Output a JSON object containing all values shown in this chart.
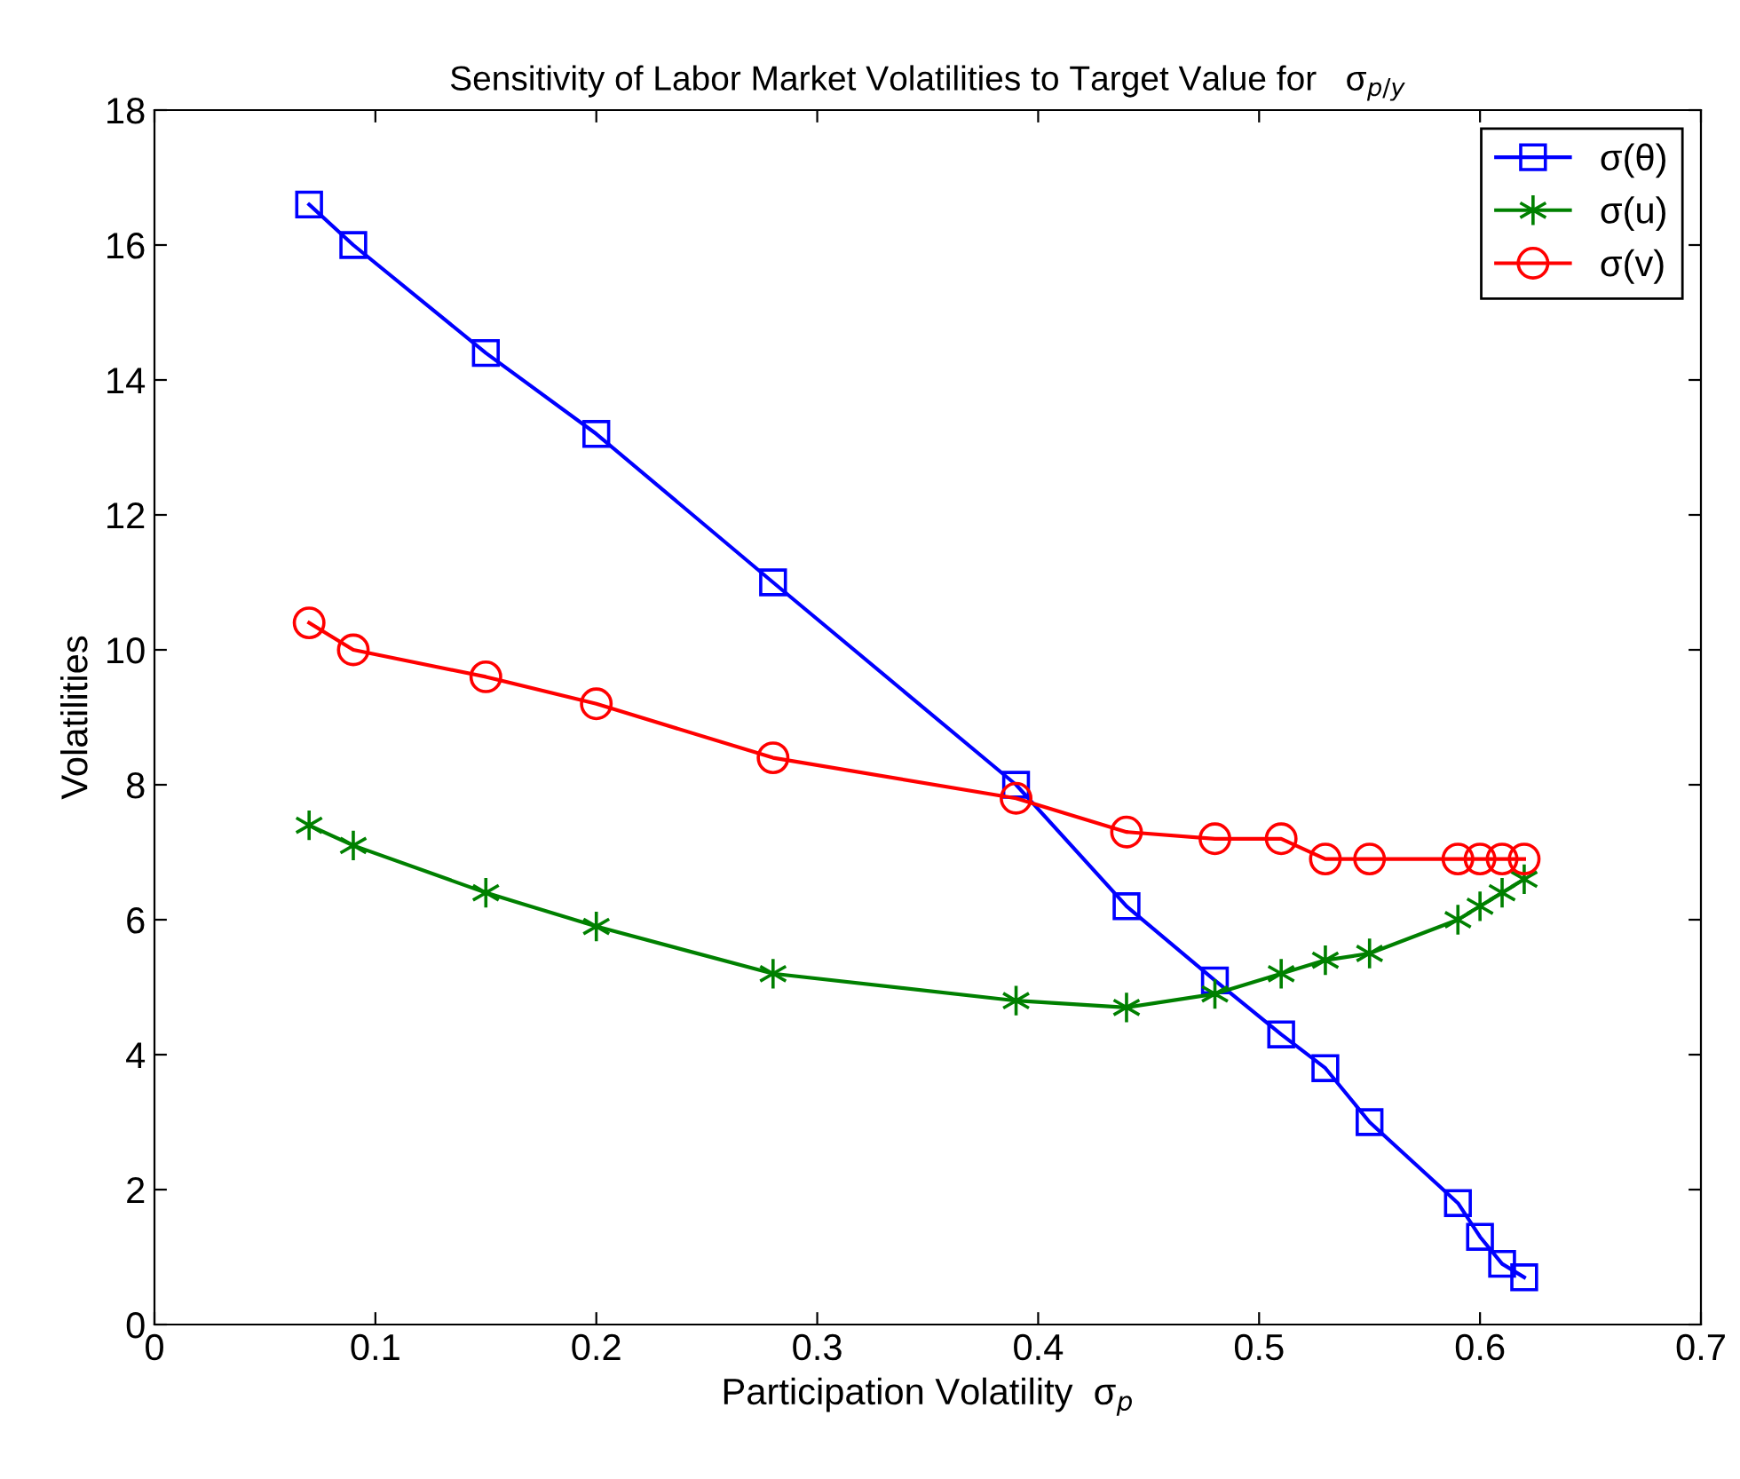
{
  "chart_data": {
    "type": "line",
    "title": "Sensitivity of Labor Market Volatilities to Target Value for   σ$_{p/y}$",
    "xlabel": "Participation Volatility  σ$_{p}$",
    "ylabel": "Volatilities",
    "x": [
      0.07,
      0.09,
      0.15,
      0.2,
      0.28,
      0.39,
      0.44,
      0.48,
      0.51,
      0.53,
      0.55,
      0.59,
      0.6,
      0.61,
      0.62
    ],
    "series": [
      {
        "name": "σ(θ)",
        "color": "#0000ff",
        "marker": "square",
        "values": [
          16.6,
          16.0,
          14.4,
          13.2,
          11.0,
          8.0,
          6.2,
          5.1,
          4.3,
          3.8,
          3.0,
          1.8,
          1.3,
          0.9,
          0.7
        ]
      },
      {
        "name": "σ(u)",
        "color": "#008000",
        "marker": "cross",
        "values": [
          7.4,
          7.1,
          6.4,
          5.9,
          5.2,
          4.8,
          4.7,
          4.9,
          5.2,
          5.4,
          5.5,
          6.0,
          6.2,
          6.4,
          6.6
        ]
      },
      {
        "name": "σ(v)",
        "color": "#ff0000",
        "marker": "circle",
        "values": [
          10.4,
          10.0,
          9.6,
          9.2,
          8.4,
          7.8,
          7.3,
          7.2,
          7.2,
          6.9,
          6.9,
          6.9,
          6.9,
          6.9,
          6.9
        ]
      }
    ],
    "xlim": [
      0,
      0.7
    ],
    "xticks": [
      0,
      0.1,
      0.2,
      0.3,
      0.4,
      0.5,
      0.6,
      0.7
    ],
    "ylim": [
      0,
      18
    ],
    "yticks": [
      0,
      2,
      4,
      6,
      8,
      10,
      12,
      14,
      16,
      18
    ],
    "grid": false,
    "legend": "top right",
    "line_style": "solid"
  }
}
